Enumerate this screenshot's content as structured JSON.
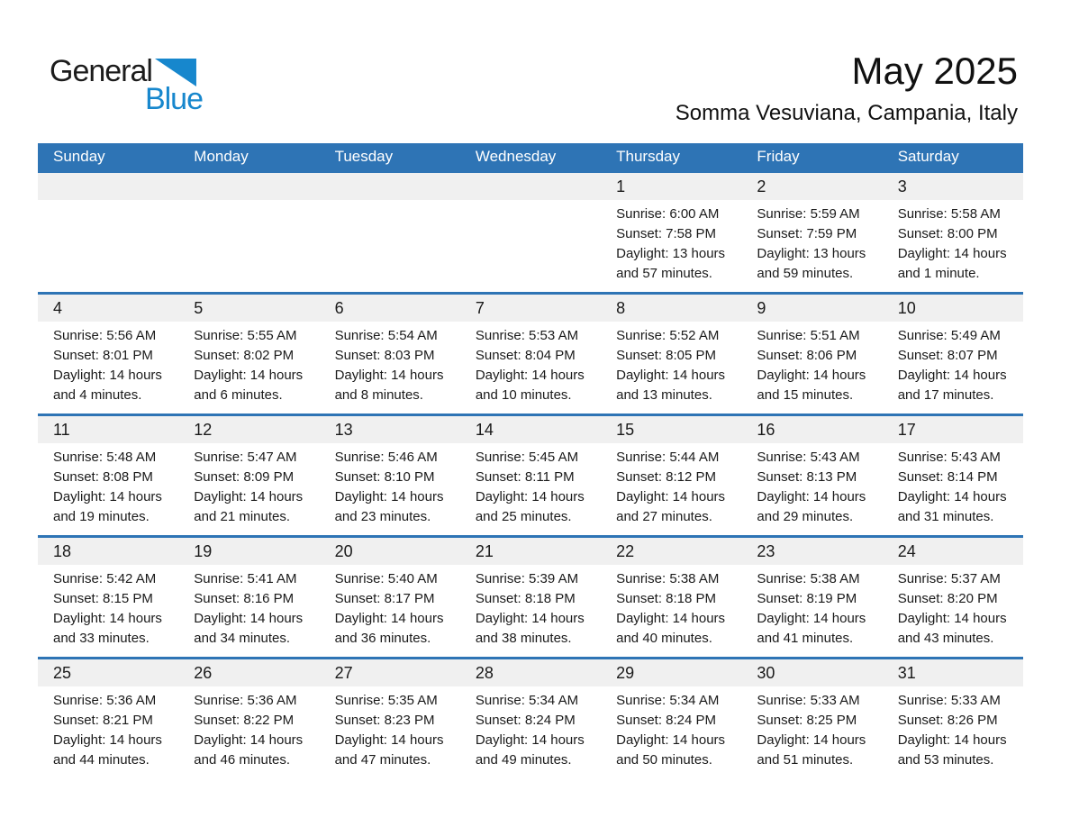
{
  "logo": {
    "part1": "General",
    "part2": "Blue"
  },
  "header": {
    "title": "May 2025",
    "subtitle": "Somma Vesuviana, Campania, Italy"
  },
  "colors": {
    "header_blue": "#2e74b5",
    "divider_blue": "#2e74b5",
    "band_gray": "#f0f0f0",
    "logo_blue": "#1787cd",
    "text_dark": "#1a1a1a"
  },
  "weekdays": [
    "Sunday",
    "Monday",
    "Tuesday",
    "Wednesday",
    "Thursday",
    "Friday",
    "Saturday"
  ],
  "weeks": [
    [
      null,
      null,
      null,
      null,
      {
        "day": "1",
        "sunrise": "Sunrise: 6:00 AM",
        "sunset": "Sunset: 7:58 PM",
        "daylight1": "Daylight: 13 hours",
        "daylight2": "and 57 minutes."
      },
      {
        "day": "2",
        "sunrise": "Sunrise: 5:59 AM",
        "sunset": "Sunset: 7:59 PM",
        "daylight1": "Daylight: 13 hours",
        "daylight2": "and 59 minutes."
      },
      {
        "day": "3",
        "sunrise": "Sunrise: 5:58 AM",
        "sunset": "Sunset: 8:00 PM",
        "daylight1": "Daylight: 14 hours",
        "daylight2": "and 1 minute."
      }
    ],
    [
      {
        "day": "4",
        "sunrise": "Sunrise: 5:56 AM",
        "sunset": "Sunset: 8:01 PM",
        "daylight1": "Daylight: 14 hours",
        "daylight2": "and 4 minutes."
      },
      {
        "day": "5",
        "sunrise": "Sunrise: 5:55 AM",
        "sunset": "Sunset: 8:02 PM",
        "daylight1": "Daylight: 14 hours",
        "daylight2": "and 6 minutes."
      },
      {
        "day": "6",
        "sunrise": "Sunrise: 5:54 AM",
        "sunset": "Sunset: 8:03 PM",
        "daylight1": "Daylight: 14 hours",
        "daylight2": "and 8 minutes."
      },
      {
        "day": "7",
        "sunrise": "Sunrise: 5:53 AM",
        "sunset": "Sunset: 8:04 PM",
        "daylight1": "Daylight: 14 hours",
        "daylight2": "and 10 minutes."
      },
      {
        "day": "8",
        "sunrise": "Sunrise: 5:52 AM",
        "sunset": "Sunset: 8:05 PM",
        "daylight1": "Daylight: 14 hours",
        "daylight2": "and 13 minutes."
      },
      {
        "day": "9",
        "sunrise": "Sunrise: 5:51 AM",
        "sunset": "Sunset: 8:06 PM",
        "daylight1": "Daylight: 14 hours",
        "daylight2": "and 15 minutes."
      },
      {
        "day": "10",
        "sunrise": "Sunrise: 5:49 AM",
        "sunset": "Sunset: 8:07 PM",
        "daylight1": "Daylight: 14 hours",
        "daylight2": "and 17 minutes."
      }
    ],
    [
      {
        "day": "11",
        "sunrise": "Sunrise: 5:48 AM",
        "sunset": "Sunset: 8:08 PM",
        "daylight1": "Daylight: 14 hours",
        "daylight2": "and 19 minutes."
      },
      {
        "day": "12",
        "sunrise": "Sunrise: 5:47 AM",
        "sunset": "Sunset: 8:09 PM",
        "daylight1": "Daylight: 14 hours",
        "daylight2": "and 21 minutes."
      },
      {
        "day": "13",
        "sunrise": "Sunrise: 5:46 AM",
        "sunset": "Sunset: 8:10 PM",
        "daylight1": "Daylight: 14 hours",
        "daylight2": "and 23 minutes."
      },
      {
        "day": "14",
        "sunrise": "Sunrise: 5:45 AM",
        "sunset": "Sunset: 8:11 PM",
        "daylight1": "Daylight: 14 hours",
        "daylight2": "and 25 minutes."
      },
      {
        "day": "15",
        "sunrise": "Sunrise: 5:44 AM",
        "sunset": "Sunset: 8:12 PM",
        "daylight1": "Daylight: 14 hours",
        "daylight2": "and 27 minutes."
      },
      {
        "day": "16",
        "sunrise": "Sunrise: 5:43 AM",
        "sunset": "Sunset: 8:13 PM",
        "daylight1": "Daylight: 14 hours",
        "daylight2": "and 29 minutes."
      },
      {
        "day": "17",
        "sunrise": "Sunrise: 5:43 AM",
        "sunset": "Sunset: 8:14 PM",
        "daylight1": "Daylight: 14 hours",
        "daylight2": "and 31 minutes."
      }
    ],
    [
      {
        "day": "18",
        "sunrise": "Sunrise: 5:42 AM",
        "sunset": "Sunset: 8:15 PM",
        "daylight1": "Daylight: 14 hours",
        "daylight2": "and 33 minutes."
      },
      {
        "day": "19",
        "sunrise": "Sunrise: 5:41 AM",
        "sunset": "Sunset: 8:16 PM",
        "daylight1": "Daylight: 14 hours",
        "daylight2": "and 34 minutes."
      },
      {
        "day": "20",
        "sunrise": "Sunrise: 5:40 AM",
        "sunset": "Sunset: 8:17 PM",
        "daylight1": "Daylight: 14 hours",
        "daylight2": "and 36 minutes."
      },
      {
        "day": "21",
        "sunrise": "Sunrise: 5:39 AM",
        "sunset": "Sunset: 8:18 PM",
        "daylight1": "Daylight: 14 hours",
        "daylight2": "and 38 minutes."
      },
      {
        "day": "22",
        "sunrise": "Sunrise: 5:38 AM",
        "sunset": "Sunset: 8:18 PM",
        "daylight1": "Daylight: 14 hours",
        "daylight2": "and 40 minutes."
      },
      {
        "day": "23",
        "sunrise": "Sunrise: 5:38 AM",
        "sunset": "Sunset: 8:19 PM",
        "daylight1": "Daylight: 14 hours",
        "daylight2": "and 41 minutes."
      },
      {
        "day": "24",
        "sunrise": "Sunrise: 5:37 AM",
        "sunset": "Sunset: 8:20 PM",
        "daylight1": "Daylight: 14 hours",
        "daylight2": "and 43 minutes."
      }
    ],
    [
      {
        "day": "25",
        "sunrise": "Sunrise: 5:36 AM",
        "sunset": "Sunset: 8:21 PM",
        "daylight1": "Daylight: 14 hours",
        "daylight2": "and 44 minutes."
      },
      {
        "day": "26",
        "sunrise": "Sunrise: 5:36 AM",
        "sunset": "Sunset: 8:22 PM",
        "daylight1": "Daylight: 14 hours",
        "daylight2": "and 46 minutes."
      },
      {
        "day": "27",
        "sunrise": "Sunrise: 5:35 AM",
        "sunset": "Sunset: 8:23 PM",
        "daylight1": "Daylight: 14 hours",
        "daylight2": "and 47 minutes."
      },
      {
        "day": "28",
        "sunrise": "Sunrise: 5:34 AM",
        "sunset": "Sunset: 8:24 PM",
        "daylight1": "Daylight: 14 hours",
        "daylight2": "and 49 minutes."
      },
      {
        "day": "29",
        "sunrise": "Sunrise: 5:34 AM",
        "sunset": "Sunset: 8:24 PM",
        "daylight1": "Daylight: 14 hours",
        "daylight2": "and 50 minutes."
      },
      {
        "day": "30",
        "sunrise": "Sunrise: 5:33 AM",
        "sunset": "Sunset: 8:25 PM",
        "daylight1": "Daylight: 14 hours",
        "daylight2": "and 51 minutes."
      },
      {
        "day": "31",
        "sunrise": "Sunrise: 5:33 AM",
        "sunset": "Sunset: 8:26 PM",
        "daylight1": "Daylight: 14 hours",
        "daylight2": "and 53 minutes."
      }
    ]
  ]
}
